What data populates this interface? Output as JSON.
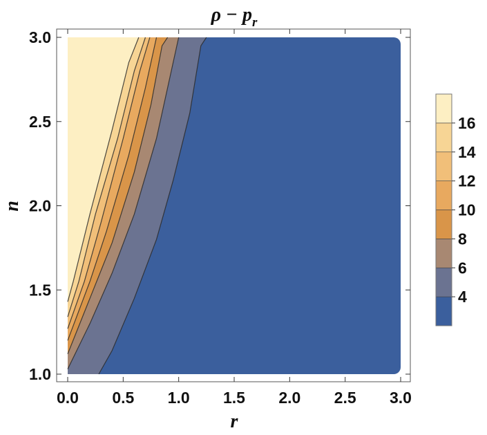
{
  "chart_data": {
    "type": "contour",
    "title_main": "ρ − p",
    "title_sub": "r",
    "xlabel": "r",
    "ylabel": "n",
    "xlim": [
      0.0,
      3.0
    ],
    "ylim": [
      1.0,
      3.0
    ],
    "x_ticks": [
      "0.0",
      "0.5",
      "1.0",
      "1.5",
      "2.0",
      "2.5",
      "3.0"
    ],
    "y_ticks": [
      "1.0",
      "1.5",
      "2.0",
      "2.5",
      "3.0"
    ],
    "legend": {
      "placement": "right",
      "labels": [
        "4",
        "6",
        "8",
        "10",
        "12",
        "14",
        "16"
      ],
      "levels": [
        2,
        4,
        6,
        8,
        10,
        12,
        14,
        16,
        18
      ],
      "colors": [
        "#3b5f9d",
        "#6b7391",
        "#a88872",
        "#d99549",
        "#e8a95f",
        "#f1bf79",
        "#f7d595",
        "#fdefc3"
      ]
    },
    "contour_boundaries": [
      {
        "level": 4,
        "points": [
          [
            0.28,
            1.0
          ],
          [
            0.4,
            1.14
          ],
          [
            0.6,
            1.45
          ],
          [
            0.8,
            1.8
          ],
          [
            0.95,
            2.15
          ],
          [
            1.1,
            2.55
          ],
          [
            1.2,
            2.95
          ],
          [
            1.25,
            3.0
          ]
        ]
      },
      {
        "level": 6,
        "points": [
          [
            0.0,
            1.03
          ],
          [
            0.2,
            1.3
          ],
          [
            0.4,
            1.6
          ],
          [
            0.6,
            1.95
          ],
          [
            0.8,
            2.4
          ],
          [
            0.95,
            2.85
          ],
          [
            1.0,
            3.0
          ]
        ]
      },
      {
        "level": 8,
        "points": [
          [
            0.0,
            1.12
          ],
          [
            0.2,
            1.45
          ],
          [
            0.4,
            1.78
          ],
          [
            0.6,
            2.2
          ],
          [
            0.75,
            2.6
          ],
          [
            0.85,
            2.95
          ],
          [
            0.9,
            3.0
          ]
        ]
      },
      {
        "level": 10,
        "points": [
          [
            0.0,
            1.2
          ],
          [
            0.2,
            1.55
          ],
          [
            0.35,
            1.85
          ],
          [
            0.55,
            2.3
          ],
          [
            0.7,
            2.7
          ],
          [
            0.8,
            3.0
          ]
        ]
      },
      {
        "level": 12,
        "points": [
          [
            0.0,
            1.27
          ],
          [
            0.15,
            1.55
          ],
          [
            0.3,
            1.9
          ],
          [
            0.5,
            2.4
          ],
          [
            0.65,
            2.8
          ],
          [
            0.74,
            3.0
          ]
        ]
      },
      {
        "level": 14,
        "points": [
          [
            0.0,
            1.34
          ],
          [
            0.1,
            1.55
          ],
          [
            0.25,
            1.95
          ],
          [
            0.45,
            2.4
          ],
          [
            0.6,
            2.8
          ],
          [
            0.7,
            3.0
          ]
        ]
      },
      {
        "level": 16,
        "points": [
          [
            0.0,
            1.43
          ],
          [
            0.05,
            1.55
          ],
          [
            0.2,
            1.95
          ],
          [
            0.4,
            2.45
          ],
          [
            0.55,
            2.85
          ],
          [
            0.64,
            3.0
          ]
        ]
      }
    ],
    "region_max_color": "#fdefc3",
    "grid": false
  }
}
